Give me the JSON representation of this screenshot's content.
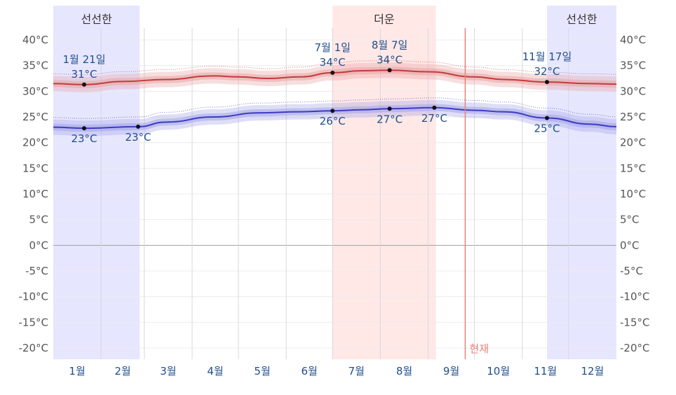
{
  "chart_data": {
    "type": "line",
    "title": "",
    "ylabel": "",
    "xlabel": "",
    "y_unit": "°C",
    "ylim": [
      -22,
      41
    ],
    "xlim_day": [
      1,
      365
    ],
    "y_ticks": [
      40,
      35,
      30,
      25,
      20,
      15,
      10,
      5,
      0,
      -5,
      -10,
      -15,
      -20
    ],
    "y_tick_labels": [
      "40°C",
      "35°C",
      "30°C",
      "25°C",
      "20°C",
      "15°C",
      "10°C",
      "5°C",
      "0°C",
      "-5°C",
      "-10°C",
      "-15°C",
      "-20°C"
    ],
    "months": [
      "1월",
      "2월",
      "3월",
      "4월",
      "5월",
      "6월",
      "7월",
      "8월",
      "9월",
      "10월",
      "11월",
      "12월"
    ],
    "grid": true,
    "seasons": [
      {
        "label": "선선한",
        "kind": "cool",
        "start_date": "01-01",
        "end_date": "02-25",
        "color": "#e6e6ff"
      },
      {
        "label": "더운",
        "kind": "hot",
        "start_date": "07-01",
        "end_date": "09-05",
        "color": "#ffe8e6"
      },
      {
        "label": "선선한",
        "kind": "cool",
        "start_date": "11-17",
        "end_date": "12-31",
        "color": "#e6e6ff"
      }
    ],
    "series": [
      {
        "kind": "high",
        "color": "#c23b3b",
        "band_color": "#e8a0a0",
        "x_dates": [
          "01-01",
          "01-21",
          "02-15",
          "03-15",
          "04-15",
          "05-01",
          "05-20",
          "06-10",
          "07-01",
          "07-20",
          "08-07",
          "09-01",
          "10-01",
          "10-20",
          "11-17",
          "12-15",
          "12-31"
        ],
        "values": [
          31.5,
          31.3,
          31.9,
          32.3,
          33.0,
          32.8,
          32.5,
          32.8,
          33.6,
          34.0,
          34.1,
          33.8,
          32.8,
          32.3,
          31.8,
          31.5,
          31.4
        ]
      },
      {
        "kind": "low",
        "color": "#3b3bc2",
        "band_color": "#a0a0e8",
        "x_dates": [
          "01-01",
          "01-21",
          "02-25",
          "03-15",
          "04-15",
          "05-15",
          "06-10",
          "07-01",
          "07-20",
          "08-07",
          "09-05",
          "10-01",
          "10-20",
          "11-17",
          "12-15",
          "12-31"
        ],
        "values": [
          23.0,
          22.8,
          23.1,
          24.0,
          25.0,
          25.8,
          26.0,
          26.2,
          26.4,
          26.6,
          26.8,
          26.3,
          26.0,
          24.8,
          23.6,
          23.1
        ]
      }
    ],
    "annotations": [
      {
        "series": "high",
        "date": "01-21",
        "value": 31,
        "label_date": "1월 21일",
        "label_value": "31°C",
        "placement": "above"
      },
      {
        "series": "high",
        "date": "07-01",
        "value": 34,
        "label_date": "7월 1일",
        "label_value": "34°C",
        "placement": "above"
      },
      {
        "series": "high",
        "date": "08-07",
        "value": 34,
        "label_date": "8월 7일",
        "label_value": "34°C",
        "placement": "above"
      },
      {
        "series": "high",
        "date": "11-17",
        "value": 32,
        "label_date": "11월 17일",
        "label_value": "32°C",
        "placement": "above"
      },
      {
        "series": "low",
        "date": "01-21",
        "value": 23,
        "label_date": "",
        "label_value": "23°C",
        "placement": "below"
      },
      {
        "series": "low",
        "date": "02-25",
        "value": 23,
        "label_date": "",
        "label_value": "23°C",
        "placement": "below"
      },
      {
        "series": "low",
        "date": "07-01",
        "value": 26,
        "label_date": "",
        "label_value": "26°C",
        "placement": "below"
      },
      {
        "series": "low",
        "date": "08-07",
        "value": 27,
        "label_date": "",
        "label_value": "27°C",
        "placement": "below"
      },
      {
        "series": "low",
        "date": "09-05",
        "value": 27,
        "label_date": "",
        "label_value": "27°C",
        "placement": "below"
      },
      {
        "series": "low",
        "date": "11-17",
        "value": 25,
        "label_date": "",
        "label_value": "25°C",
        "placement": "below"
      }
    ],
    "now_marker": {
      "label": "현재",
      "date": "09-25",
      "color": "#e8827a"
    }
  }
}
